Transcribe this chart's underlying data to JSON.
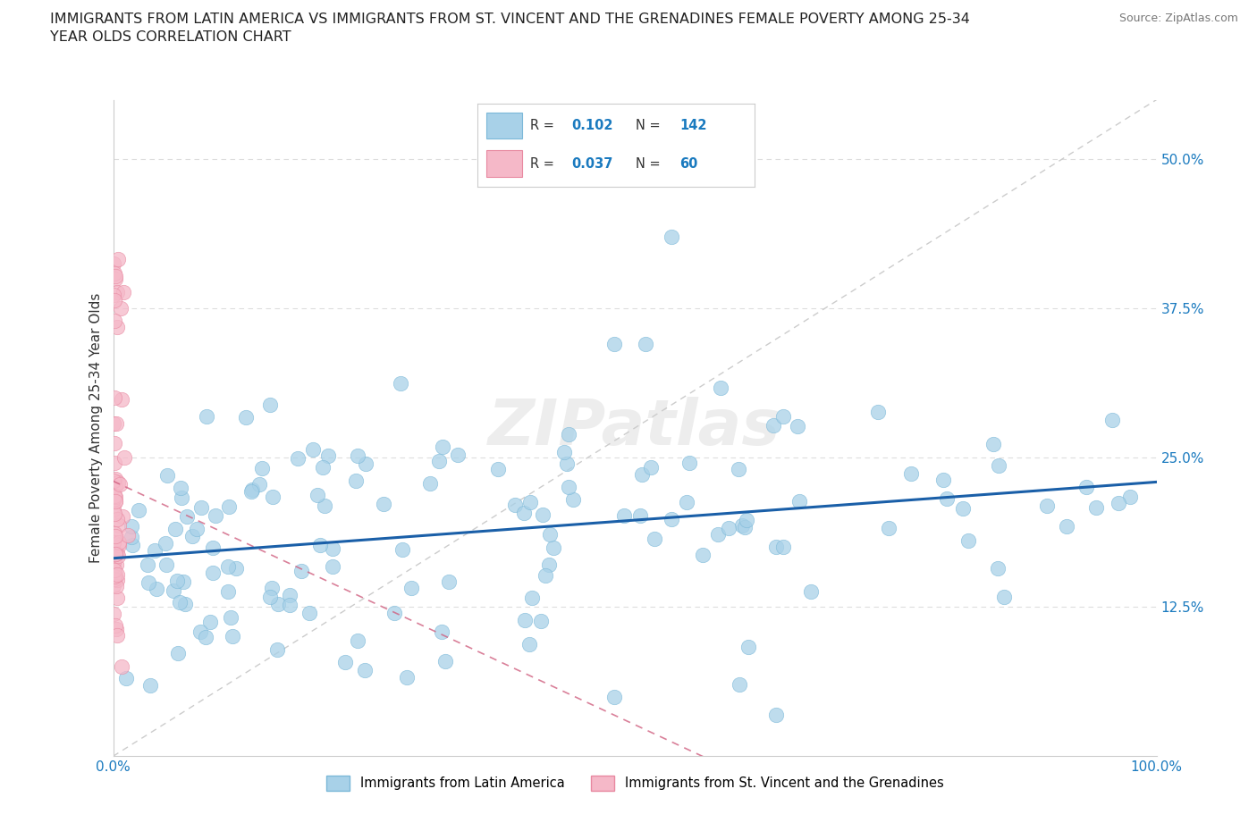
{
  "title_line1": "IMMIGRANTS FROM LATIN AMERICA VS IMMIGRANTS FROM ST. VINCENT AND THE GRENADINES FEMALE POVERTY AMONG 25-34",
  "title_line2": "YEAR OLDS CORRELATION CHART",
  "source_text": "Source: ZipAtlas.com",
  "ylabel": "Female Poverty Among 25-34 Year Olds",
  "xlim": [
    0.0,
    1.0
  ],
  "ylim": [
    0.0,
    0.55
  ],
  "xtick_positions": [
    0.0,
    1.0
  ],
  "xtick_labels": [
    "0.0%",
    "100.0%"
  ],
  "ytick_positions": [
    0.0,
    0.125,
    0.25,
    0.375,
    0.5
  ],
  "ytick_labels": [
    "",
    "12.5%",
    "25.0%",
    "37.5%",
    "50.0%"
  ],
  "blue_color": "#a8d1e8",
  "blue_edge": "#7bb8d8",
  "pink_color": "#f5b8c8",
  "pink_edge": "#e888a0",
  "trend_blue": "#1a5fa8",
  "trend_pink": "#d06080",
  "diag_color": "#cccccc",
  "grid_color": "#dddddd",
  "R_blue": 0.102,
  "N_blue": 142,
  "R_pink": 0.037,
  "N_pink": 60,
  "legend_label_blue": "Immigrants from Latin America",
  "legend_label_pink": "Immigrants from St. Vincent and the Grenadines",
  "watermark": "ZIPatlas",
  "title_color": "#222222",
  "axis_label_color": "#333333",
  "tick_color": "#1a7abf",
  "source_color": "#777777",
  "legend_R_color": "#1a7abf",
  "legend_text_color": "#333333"
}
